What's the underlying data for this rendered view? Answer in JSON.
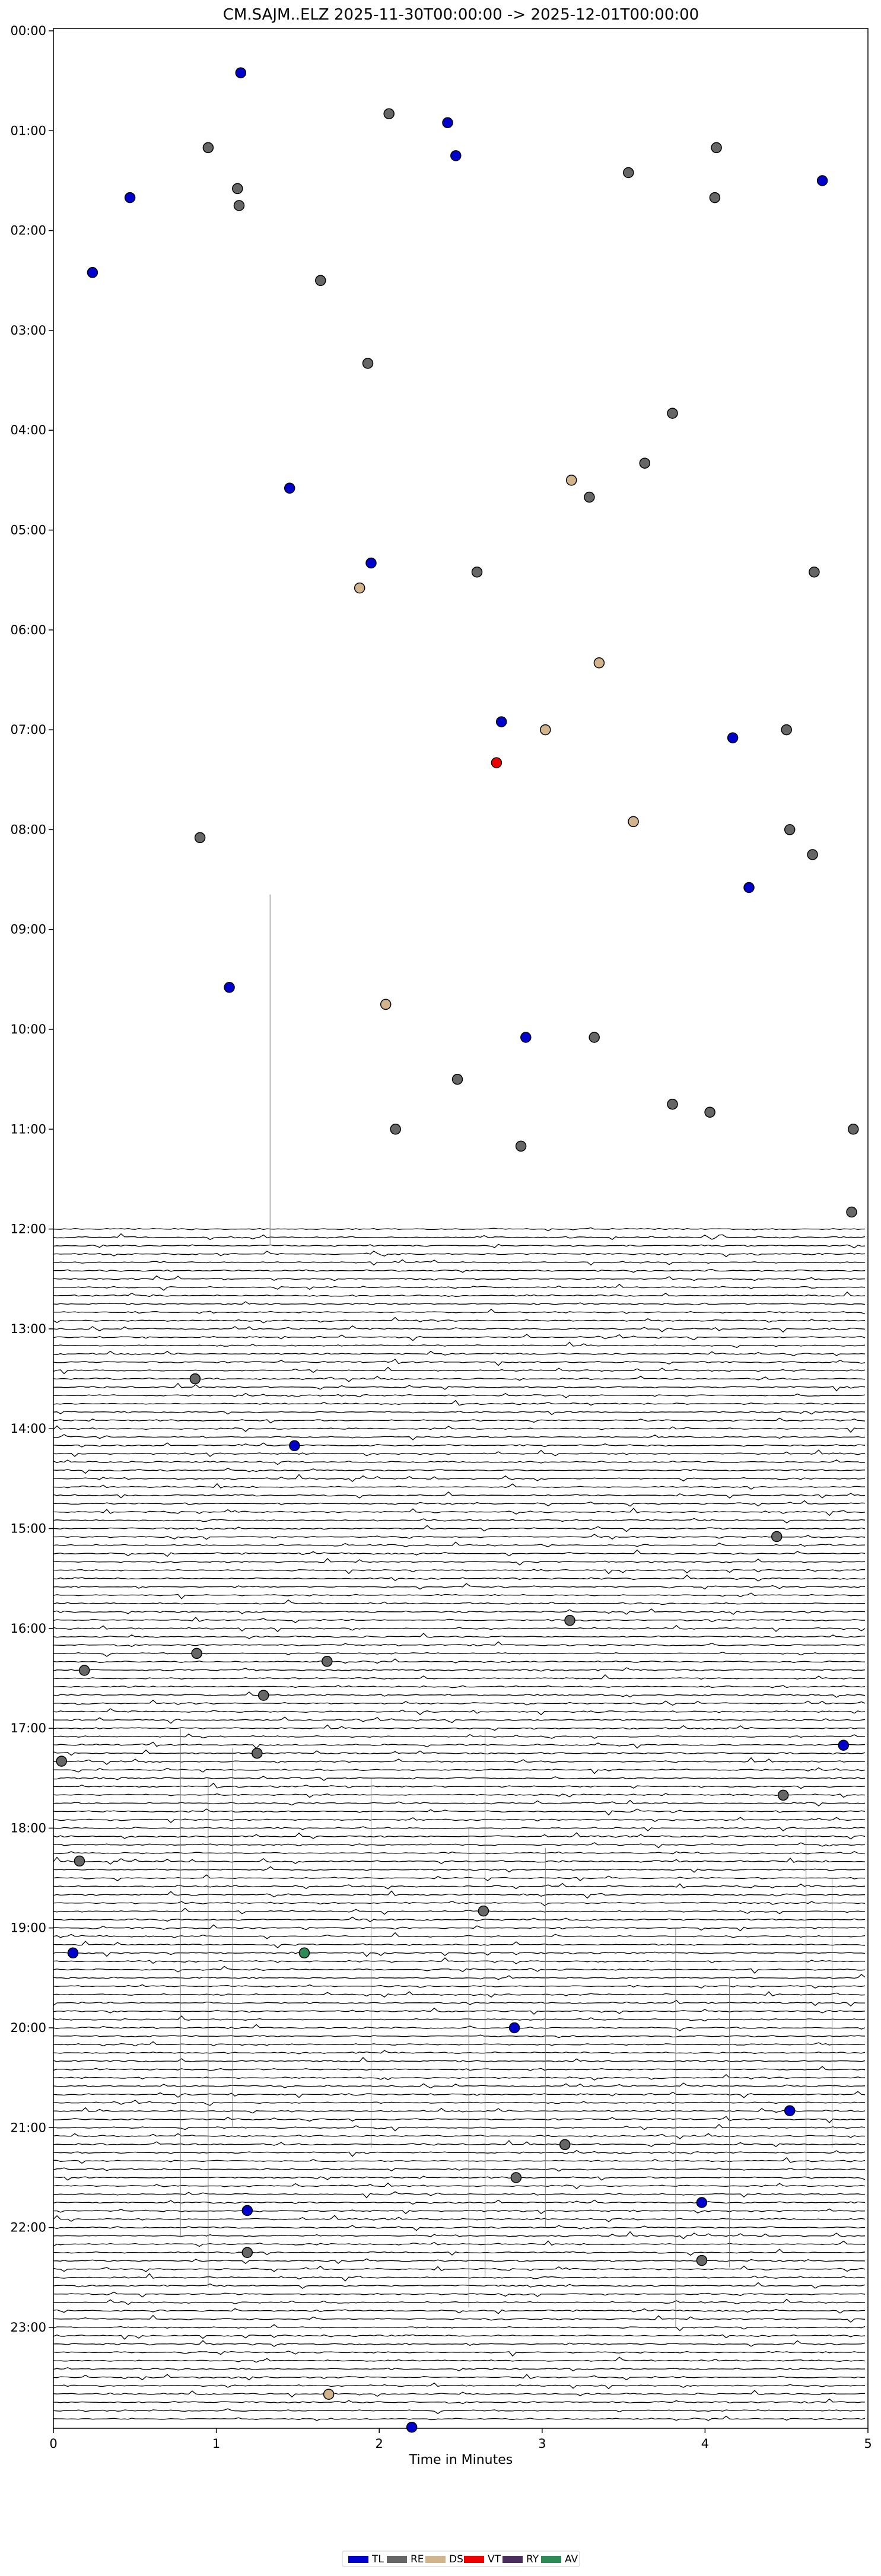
{
  "chart_data": {
    "type": "scatter",
    "subtype": "helicorder",
    "title": "CM.SAJM..ELZ  2025-11-30T00:00:00 -> 2025-12-01T00:00:00",
    "xlabel": "Time in Minutes",
    "ylabel": "",
    "xlim": [
      0,
      5
    ],
    "x_ticks": [
      "0",
      "1",
      "2",
      "3",
      "4",
      "5"
    ],
    "y_ticks": [
      "00:00",
      "01:00",
      "02:00",
      "03:00",
      "04:00",
      "05:00",
      "06:00",
      "07:00",
      "08:00",
      "09:00",
      "10:00",
      "11:00",
      "12:00",
      "13:00",
      "14:00",
      "15:00",
      "16:00",
      "17:00",
      "18:00",
      "19:00",
      "20:00",
      "21:00",
      "22:00",
      "23:00"
    ],
    "ylim_hours": [
      0,
      24
    ],
    "grid": false,
    "legend_position": "bottom-center",
    "legend": [
      {
        "code": "TL",
        "color": "#0000cc"
      },
      {
        "code": "RE",
        "color": "#666666"
      },
      {
        "code": "DS",
        "color": "#d2b48c"
      },
      {
        "code": "VT",
        "color": "#ee0000"
      },
      {
        "code": "RY",
        "color": "#4b2d5e"
      },
      {
        "code": "AV",
        "color": "#2e8b57"
      }
    ],
    "series": [
      {
        "code": "TL",
        "points": [
          [
            1.15,
            0.42
          ],
          [
            2.42,
            0.92
          ],
          [
            2.47,
            1.25
          ],
          [
            0.47,
            1.67
          ],
          [
            4.72,
            1.5
          ],
          [
            0.24,
            2.42
          ],
          [
            1.45,
            4.58
          ],
          [
            1.95,
            5.33
          ],
          [
            2.75,
            6.92
          ],
          [
            4.17,
            7.08
          ],
          [
            4.27,
            8.58
          ],
          [
            1.08,
            9.58
          ],
          [
            2.9,
            10.08
          ],
          [
            1.48,
            14.17
          ],
          [
            4.85,
            17.17
          ],
          [
            0.12,
            19.25
          ],
          [
            2.83,
            20.0
          ],
          [
            4.52,
            20.83
          ],
          [
            3.98,
            21.75
          ],
          [
            1.19,
            21.83
          ],
          [
            2.2,
            24.0
          ]
        ]
      },
      {
        "code": "RE",
        "points": [
          [
            2.06,
            0.83
          ],
          [
            0.95,
            1.17
          ],
          [
            1.13,
            1.58
          ],
          [
            1.14,
            1.75
          ],
          [
            3.53,
            1.42
          ],
          [
            4.07,
            1.17
          ],
          [
            4.06,
            1.67
          ],
          [
            1.64,
            2.5
          ],
          [
            1.93,
            3.33
          ],
          [
            3.8,
            3.83
          ],
          [
            3.63,
            4.33
          ],
          [
            3.29,
            4.67
          ],
          [
            2.6,
            5.42
          ],
          [
            4.67,
            5.42
          ],
          [
            4.5,
            7.0
          ],
          [
            4.52,
            8.0
          ],
          [
            4.66,
            8.25
          ],
          [
            0.9,
            8.08
          ],
          [
            3.32,
            10.08
          ],
          [
            2.48,
            10.5
          ],
          [
            2.1,
            11.0
          ],
          [
            2.87,
            11.17
          ],
          [
            3.8,
            10.75
          ],
          [
            4.03,
            10.83
          ],
          [
            4.91,
            11.0
          ],
          [
            4.9,
            11.83
          ],
          [
            0.87,
            13.5
          ],
          [
            4.44,
            15.08
          ],
          [
            3.17,
            15.92
          ],
          [
            0.88,
            16.25
          ],
          [
            0.19,
            16.42
          ],
          [
            1.68,
            16.33
          ],
          [
            1.29,
            16.67
          ],
          [
            1.25,
            17.25
          ],
          [
            0.05,
            17.33
          ],
          [
            4.48,
            17.67
          ],
          [
            0.16,
            18.33
          ],
          [
            2.64,
            18.83
          ],
          [
            3.14,
            21.17
          ],
          [
            2.84,
            21.5
          ],
          [
            1.19,
            22.25
          ],
          [
            3.98,
            22.33
          ]
        ]
      },
      {
        "code": "DS",
        "points": [
          [
            3.18,
            4.5
          ],
          [
            1.88,
            5.58
          ],
          [
            3.35,
            6.33
          ],
          [
            3.02,
            7.0
          ],
          [
            3.56,
            7.92
          ],
          [
            2.04,
            9.75
          ],
          [
            1.69,
            23.67
          ]
        ]
      },
      {
        "code": "VT",
        "points": [
          [
            2.72,
            7.33
          ]
        ]
      },
      {
        "code": "RY",
        "points": []
      },
      {
        "code": "AV",
        "points": [
          [
            1.54,
            19.25
          ]
        ]
      }
    ],
    "traces": {
      "first_hour": 12.0,
      "last_hour": 24.0,
      "lines_per_hour": 12
    }
  }
}
